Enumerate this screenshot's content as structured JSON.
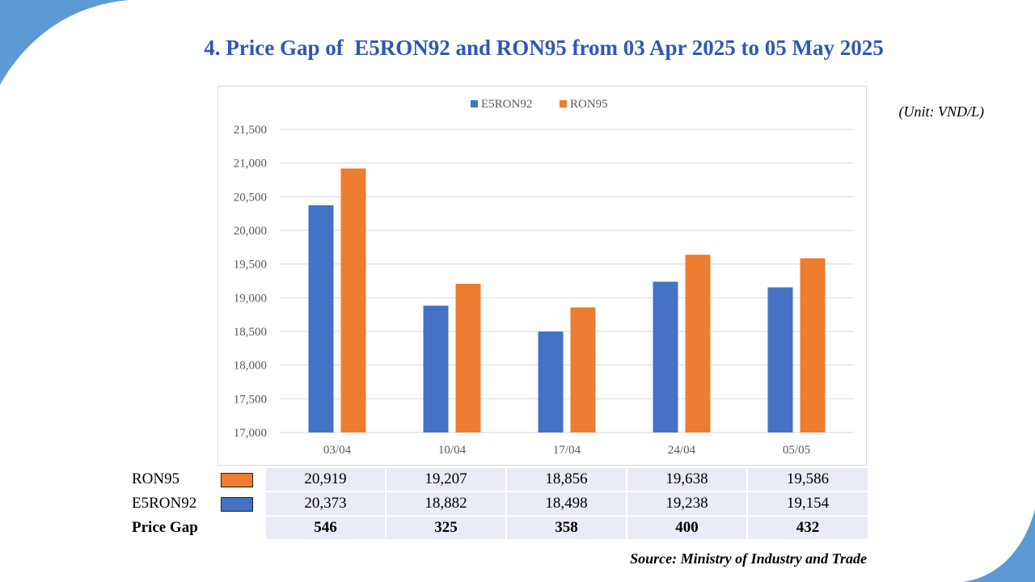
{
  "title": "4. Price Gap of  E5RON92 and RON95 from 03 Apr 2025 to 05 May 2025",
  "unit": "(Unit: VND/L)",
  "source": "Source: Ministry of Industry and Trade",
  "colors": {
    "title": "#2f57b6",
    "e5ron92": "#4472c4",
    "ron95": "#ed7d31",
    "corner": "#5b9bd5"
  },
  "chart_data": {
    "type": "bar",
    "categories": [
      "03/04",
      "10/04",
      "17/04",
      "24/04",
      "05/05"
    ],
    "series": [
      {
        "name": "E5RON92",
        "values": [
          20373,
          18882,
          18498,
          19238,
          19154
        ]
      },
      {
        "name": "RON95",
        "values": [
          20919,
          19207,
          18856,
          19638,
          19586
        ]
      }
    ],
    "ylim": [
      17000,
      21500
    ],
    "yticks": [
      "17,000",
      "17,500",
      "18,000",
      "18,500",
      "19,000",
      "19,500",
      "20,000",
      "20,500",
      "21,000",
      "21,500"
    ],
    "grid": true,
    "legend": "top-center",
    "title": "",
    "xlabel": "",
    "ylabel": ""
  },
  "table": {
    "rows": [
      {
        "label": "RON95",
        "swatch": "ron95",
        "values": [
          "20,919",
          "19,207",
          "18,856",
          "19,638",
          "19,586"
        ]
      },
      {
        "label": "E5RON92",
        "swatch": "e5ron92",
        "values": [
          "20,373",
          "18,882",
          "18,498",
          "19,238",
          "19,154"
        ]
      },
      {
        "label": "Price Gap",
        "values": [
          "546",
          "325",
          "358",
          "400",
          "432"
        ]
      }
    ]
  }
}
